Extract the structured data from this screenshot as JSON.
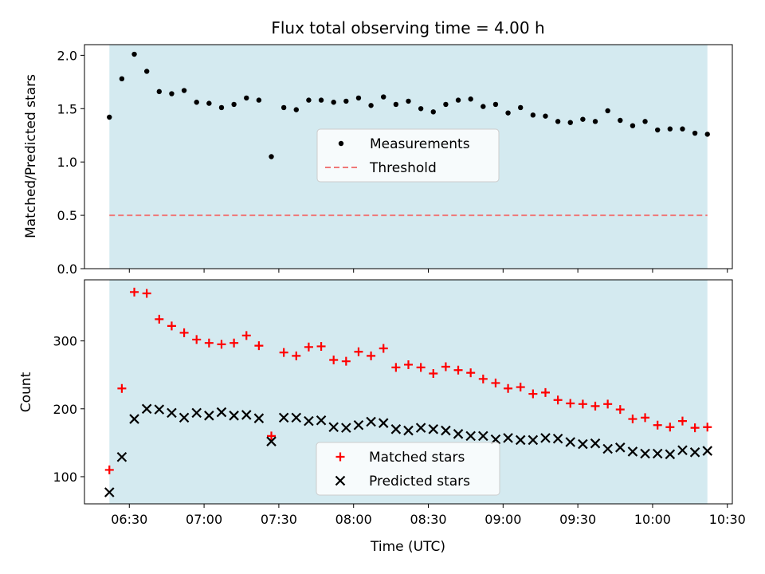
{
  "figure": {
    "title": "Flux total observing time = 4.00 h",
    "xlabel": "Time (UTC)",
    "x_ticks": [
      "06:30",
      "07:00",
      "07:30",
      "08:00",
      "08:30",
      "09:00",
      "09:30",
      "10:00",
      "10:30"
    ],
    "observing_window": {
      "start": "06:22",
      "end": "10:22",
      "color": "#d4eaf0"
    }
  },
  "chart_data": [
    {
      "type": "scatter",
      "ylabel": "Matched/Predicted stars",
      "ylim": [
        0,
        2.1
      ],
      "y_ticks": [
        "0.0",
        "0.5",
        "1.0",
        "1.5",
        "2.0"
      ],
      "legend_position": "center",
      "series": [
        {
          "name": "Measurements",
          "marker": "dot",
          "color": "#000000",
          "x": [
            "06:22",
            "06:27",
            "06:32",
            "06:37",
            "06:42",
            "06:47",
            "06:52",
            "06:57",
            "07:02",
            "07:07",
            "07:12",
            "07:17",
            "07:22",
            "07:27",
            "07:32",
            "07:37",
            "07:42",
            "07:47",
            "07:52",
            "07:57",
            "08:02",
            "08:07",
            "08:12",
            "08:17",
            "08:22",
            "08:27",
            "08:32",
            "08:37",
            "08:42",
            "08:47",
            "08:52",
            "08:57",
            "09:02",
            "09:07",
            "09:12",
            "09:17",
            "09:22",
            "09:27",
            "09:32",
            "09:37",
            "09:42",
            "09:47",
            "09:52",
            "09:57",
            "10:02",
            "10:07",
            "10:12",
            "10:17",
            "10:22"
          ],
          "y": [
            1.42,
            1.78,
            2.01,
            1.85,
            1.66,
            1.64,
            1.67,
            1.56,
            1.55,
            1.51,
            1.54,
            1.6,
            1.58,
            1.05,
            1.51,
            1.49,
            1.58,
            1.58,
            1.56,
            1.57,
            1.6,
            1.53,
            1.61,
            1.54,
            1.57,
            1.5,
            1.47,
            1.54,
            1.58,
            1.59,
            1.52,
            1.54,
            1.46,
            1.51,
            1.44,
            1.43,
            1.38,
            1.37,
            1.4,
            1.38,
            1.48,
            1.39,
            1.34,
            1.38,
            1.3,
            1.31,
            1.31,
            1.27,
            1.26
          ]
        },
        {
          "name": "Threshold",
          "line": "dashed",
          "color": "#f07878",
          "x": [
            "06:22",
            "10:22"
          ],
          "y": [
            0.5,
            0.5
          ]
        }
      ]
    },
    {
      "type": "scatter",
      "ylabel": "Count",
      "ylim": [
        60,
        390
      ],
      "y_ticks": [
        "100",
        "200",
        "300"
      ],
      "legend_position": "bottom-center",
      "series": [
        {
          "name": "Matched stars",
          "marker": "plus",
          "color": "#ff0000",
          "x": [
            "06:22",
            "06:27",
            "06:32",
            "06:37",
            "06:42",
            "06:47",
            "06:52",
            "06:57",
            "07:02",
            "07:07",
            "07:12",
            "07:17",
            "07:22",
            "07:27",
            "07:32",
            "07:37",
            "07:42",
            "07:47",
            "07:52",
            "07:57",
            "08:02",
            "08:07",
            "08:12",
            "08:17",
            "08:22",
            "08:27",
            "08:32",
            "08:37",
            "08:42",
            "08:47",
            "08:52",
            "08:57",
            "09:02",
            "09:07",
            "09:12",
            "09:17",
            "09:22",
            "09:27",
            "09:32",
            "09:37",
            "09:42",
            "09:47",
            "09:52",
            "09:57",
            "10:02",
            "10:07",
            "10:12",
            "10:17",
            "10:22"
          ],
          "y": [
            110,
            230,
            372,
            370,
            332,
            322,
            312,
            302,
            297,
            295,
            297,
            308,
            293,
            160,
            283,
            278,
            291,
            292,
            272,
            270,
            284,
            278,
            289,
            261,
            265,
            261,
            252,
            262,
            257,
            253,
            244,
            238,
            230,
            232,
            222,
            224,
            213,
            208,
            207,
            204,
            207,
            199,
            185,
            187,
            176,
            173,
            182,
            172,
            173
          ]
        },
        {
          "name": "Predicted stars",
          "marker": "cross",
          "color": "#000000",
          "x": [
            "06:22",
            "06:27",
            "06:32",
            "06:37",
            "06:42",
            "06:47",
            "06:52",
            "06:57",
            "07:02",
            "07:07",
            "07:12",
            "07:17",
            "07:22",
            "07:27",
            "07:32",
            "07:37",
            "07:42",
            "07:47",
            "07:52",
            "07:57",
            "08:02",
            "08:07",
            "08:12",
            "08:17",
            "08:22",
            "08:27",
            "08:32",
            "08:37",
            "08:42",
            "08:47",
            "08:52",
            "08:57",
            "09:02",
            "09:07",
            "09:12",
            "09:17",
            "09:22",
            "09:27",
            "09:32",
            "09:37",
            "09:42",
            "09:47",
            "09:52",
            "09:57",
            "10:02",
            "10:07",
            "10:12",
            "10:17",
            "10:22"
          ],
          "y": [
            77,
            129,
            185,
            200,
            199,
            194,
            187,
            194,
            190,
            195,
            190,
            191,
            186,
            152,
            187,
            187,
            182,
            183,
            173,
            172,
            176,
            181,
            179,
            170,
            168,
            172,
            170,
            168,
            163,
            160,
            160,
            155,
            157,
            154,
            154,
            157,
            156,
            151,
            148,
            149,
            141,
            143,
            137,
            134,
            134,
            133,
            139,
            136,
            138
          ]
        }
      ]
    }
  ]
}
